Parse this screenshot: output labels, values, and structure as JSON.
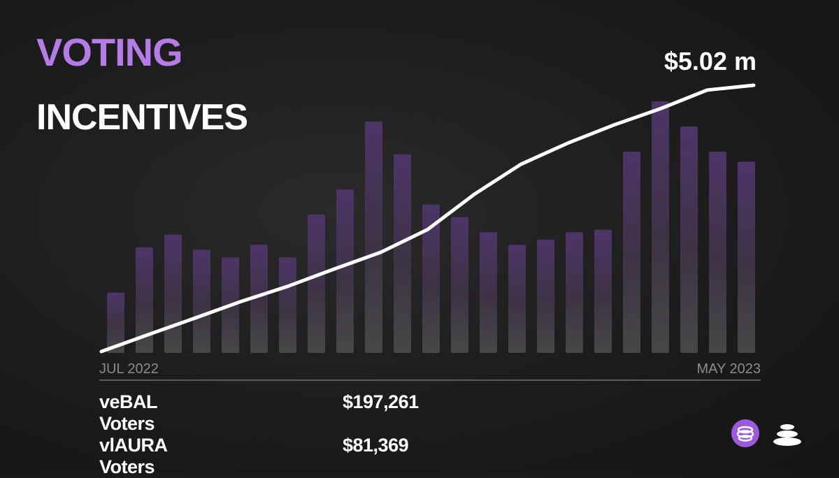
{
  "title": {
    "line1": "VOTING",
    "line2": "INCENTIVES"
  },
  "colors": {
    "accent": "#b57ce8",
    "bar_top": "#5a3d7a",
    "bar_bottom": "#4a4a4a",
    "line": "#ffffff",
    "background": "#1c1c1c"
  },
  "chart_data": {
    "type": "bar",
    "xlabel_start": "JUL 2022",
    "xlabel_end": "MAY 2023",
    "callout": "$5.02 m",
    "bars": [
      0.24,
      0.42,
      0.47,
      0.41,
      0.38,
      0.43,
      0.38,
      0.55,
      0.65,
      0.92,
      0.79,
      0.59,
      0.54,
      0.48,
      0.43,
      0.45,
      0.48,
      0.49,
      0.8,
      1.0,
      0.9,
      0.8,
      0.76
    ],
    "cumulative_line": [
      0.0,
      0.063,
      0.125,
      0.188,
      0.245,
      0.31,
      0.373,
      0.458,
      0.59,
      0.703,
      0.782,
      0.851,
      0.912,
      0.982,
      1.0
    ],
    "y_note": "bar and line values normalized to chart height (no y-axis printed)"
  },
  "stats": [
    {
      "label": "veBAL Voters",
      "value": "$197,261"
    },
    {
      "label": "vlAURA Voters",
      "value": "$81,369"
    }
  ],
  "logos": {
    "aura": "aura-logo",
    "balancer": "balancer-logo"
  }
}
